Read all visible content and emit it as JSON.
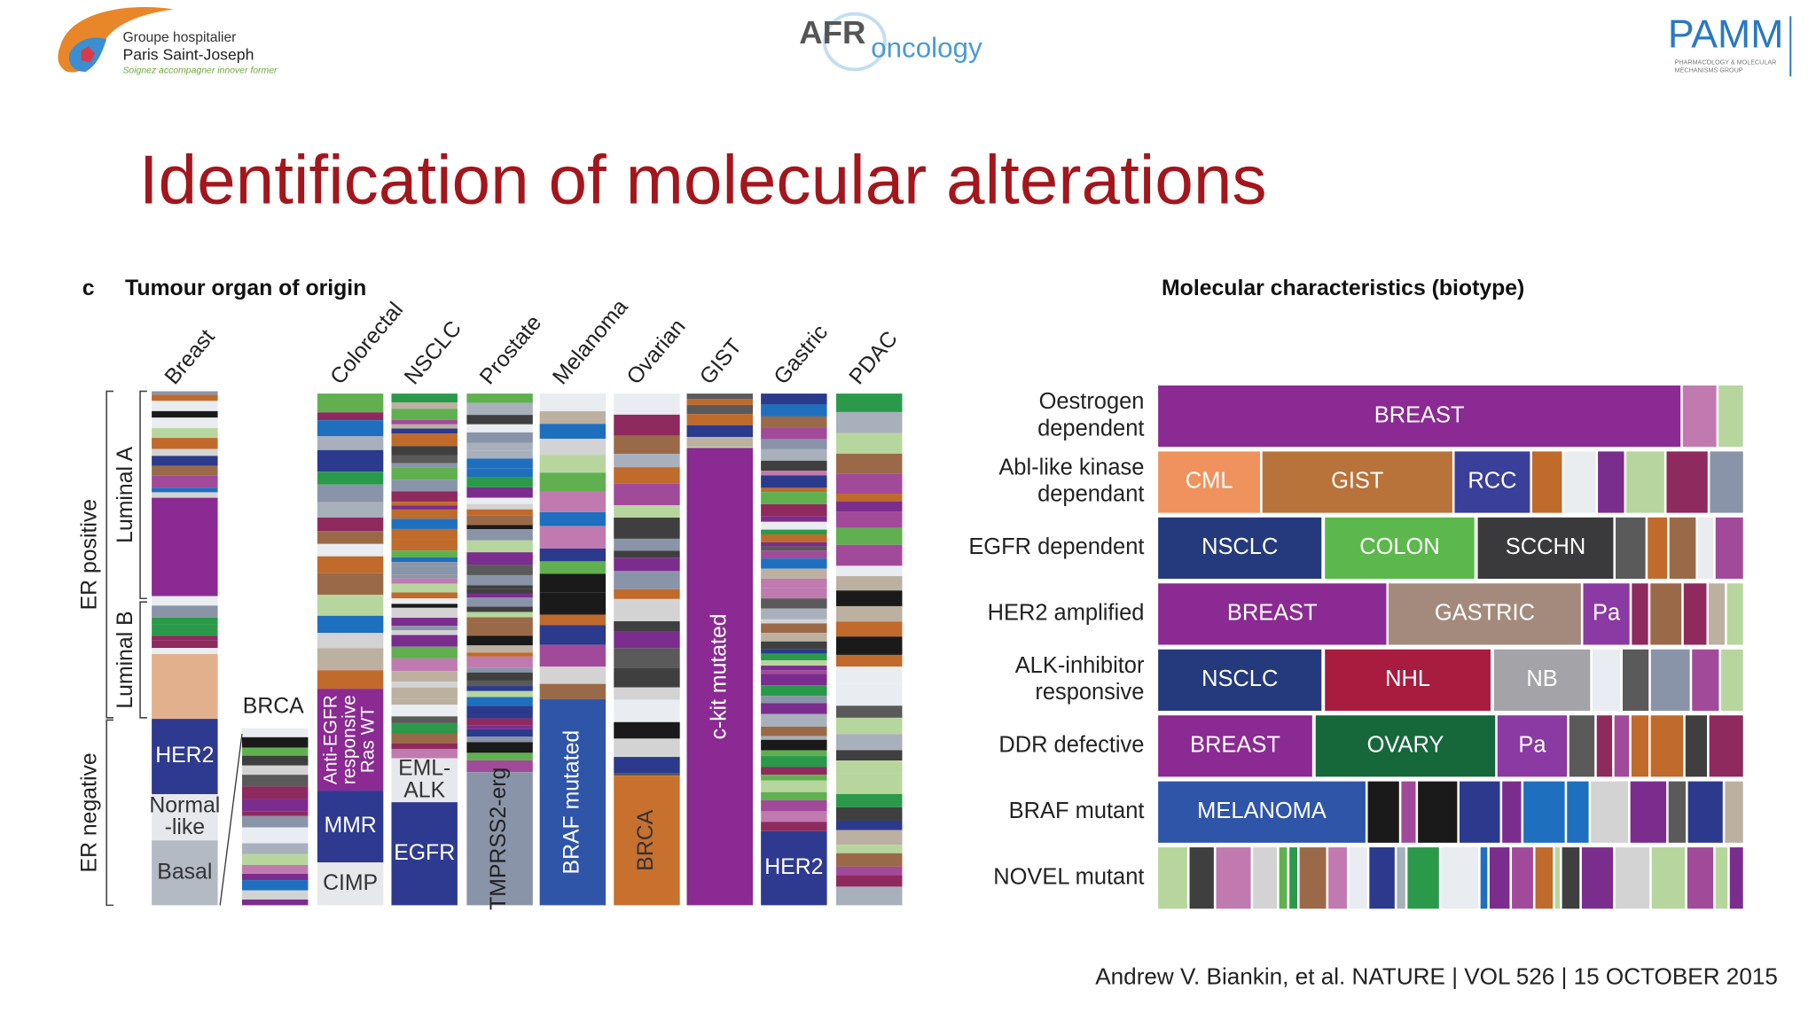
{
  "header": {
    "logo_left": {
      "line1": "Groupe hospitalier",
      "line2": "Paris Saint-Joseph",
      "tagline": "Soignez accompagner innover former"
    },
    "logo_center": {
      "afr": "AFR",
      "oncology": "oncology"
    },
    "logo_right": {
      "name": "PAMM",
      "sub1": "PHARMACOLOGY & MOLECULAR",
      "sub2": "MECHANISMS GROUP"
    }
  },
  "title": "Identification of molecular alterations",
  "left_panel": {
    "label": "c",
    "title": "Tumour organ of origin",
    "columns": [
      "Breast",
      "Colorectal",
      "NSCLC",
      "Prostate",
      "Melanoma",
      "Ovarian",
      "GIST",
      "Gastric",
      "PDAC"
    ],
    "groups": {
      "er_positive": "ER positive",
      "luminal_a": "Luminal A",
      "luminal_b": "Luminal B",
      "er_negative": "ER negative"
    },
    "annotations": {
      "her2_breast": [
        "HER2"
      ],
      "normal_like": [
        "Normal",
        "-like"
      ],
      "basal": [
        "Basal"
      ],
      "brca_side": [
        "BRCA"
      ],
      "anti_egfr": [
        "Anti-EGFR",
        "responsive",
        "Ras WT"
      ],
      "mmr": [
        "MMR"
      ],
      "cimp": [
        "CIMP"
      ],
      "eml_alk": [
        "EML-",
        "ALK"
      ],
      "egfr": [
        "EGFR"
      ],
      "tmprss2": [
        "TMPRSS2-erg"
      ],
      "braf": [
        "BRAF mutated"
      ],
      "brca_ovarian": [
        "BRCA"
      ],
      "ckit": [
        "c-kit mutated"
      ],
      "her2_gastric": [
        "HER2"
      ]
    }
  },
  "right_panel": {
    "title": "Molecular characteristics (biotype)",
    "rows": [
      {
        "label": [
          "Oestrogen",
          "dependent"
        ],
        "cells": [
          "BREAST"
        ]
      },
      {
        "label": [
          "Abl-like kinase",
          "dependant"
        ],
        "cells": [
          "CML",
          "GIST",
          "RCC"
        ]
      },
      {
        "label": [
          "EGFR dependent"
        ],
        "cells": [
          "NSCLC",
          "COLON",
          "SCCHN"
        ]
      },
      {
        "label": [
          "HER2 amplified"
        ],
        "cells": [
          "BREAST",
          "GASTRIC",
          "Pa"
        ]
      },
      {
        "label": [
          "ALK-inhibitor",
          "responsive"
        ],
        "cells": [
          "NSCLC",
          "NHL",
          "NB"
        ]
      },
      {
        "label": [
          "DDR defective"
        ],
        "cells": [
          "BREAST",
          "OVARY",
          "Pa"
        ]
      },
      {
        "label": [
          "BRAF mutant"
        ],
        "cells": [
          "MELANOMA"
        ]
      },
      {
        "label": [
          "NOVEL mutant"
        ]
      }
    ]
  },
  "citation": "Andrew V. Biankin, et al. NATURE | VOL 526 | 15 OCTOBER 2015"
}
